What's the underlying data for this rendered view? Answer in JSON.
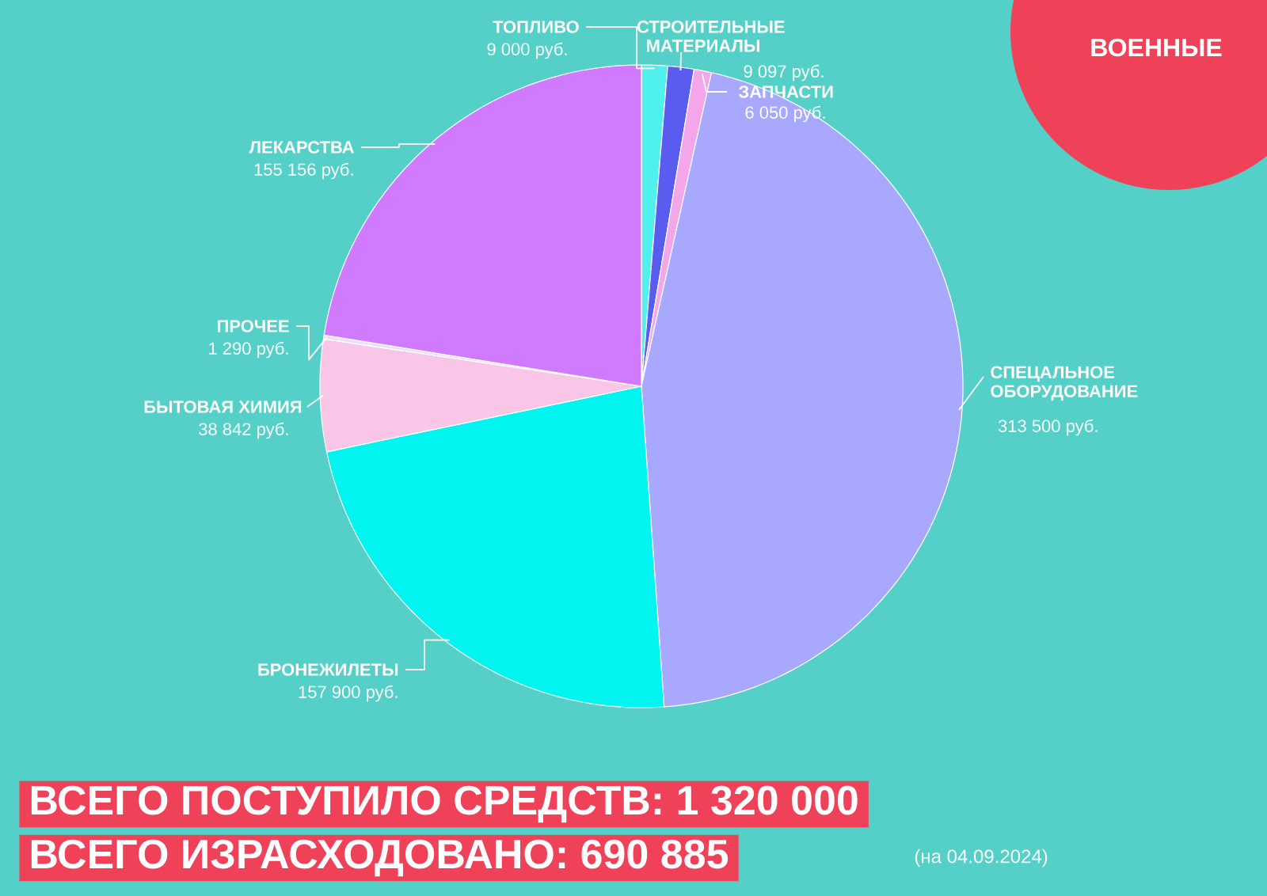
{
  "chart_data": {
    "type": "pie",
    "title": "ВОЕННЫЕ",
    "categories": [
      "ТОПЛИВО",
      "СТРОИТЕЛЬНЫЕ МАТЕРИАЛЫ",
      "ЗАПЧАСТИ",
      "СПЕЦАЛЬНОЕ ОБОРУДОВАНИЕ",
      "БРОНЕЖИЛЕТЫ",
      "БЫТОВАЯ ХИМИЯ",
      "ПРОЧЕЕ",
      "ЛЕКАРСТВА"
    ],
    "values": [
      9000,
      9097,
      6050,
      313500,
      157900,
      38842,
      1290,
      155156
    ],
    "colors": [
      "#4ff0ee",
      "#5a5cf0",
      "#f3a6ea",
      "#a8a8ff",
      "#00f5f0",
      "#f9c6e8",
      "#e8e0f8",
      "#d07aff"
    ],
    "value_labels": [
      "9 000 руб.",
      "9 097 руб.",
      "6 050 руб.",
      "313 500 руб.",
      "157 900 руб.",
      "38 842 руб.",
      "1 290 руб.",
      "155 156 руб."
    ],
    "annotations": [
      "ВСЕГО ПОСТУПИЛО СРЕДСТВ: 1 320 000",
      "ВСЕГО ИЗРАСХОДОВАНО: 690 885",
      "(на 04.09.2024)"
    ]
  }
}
